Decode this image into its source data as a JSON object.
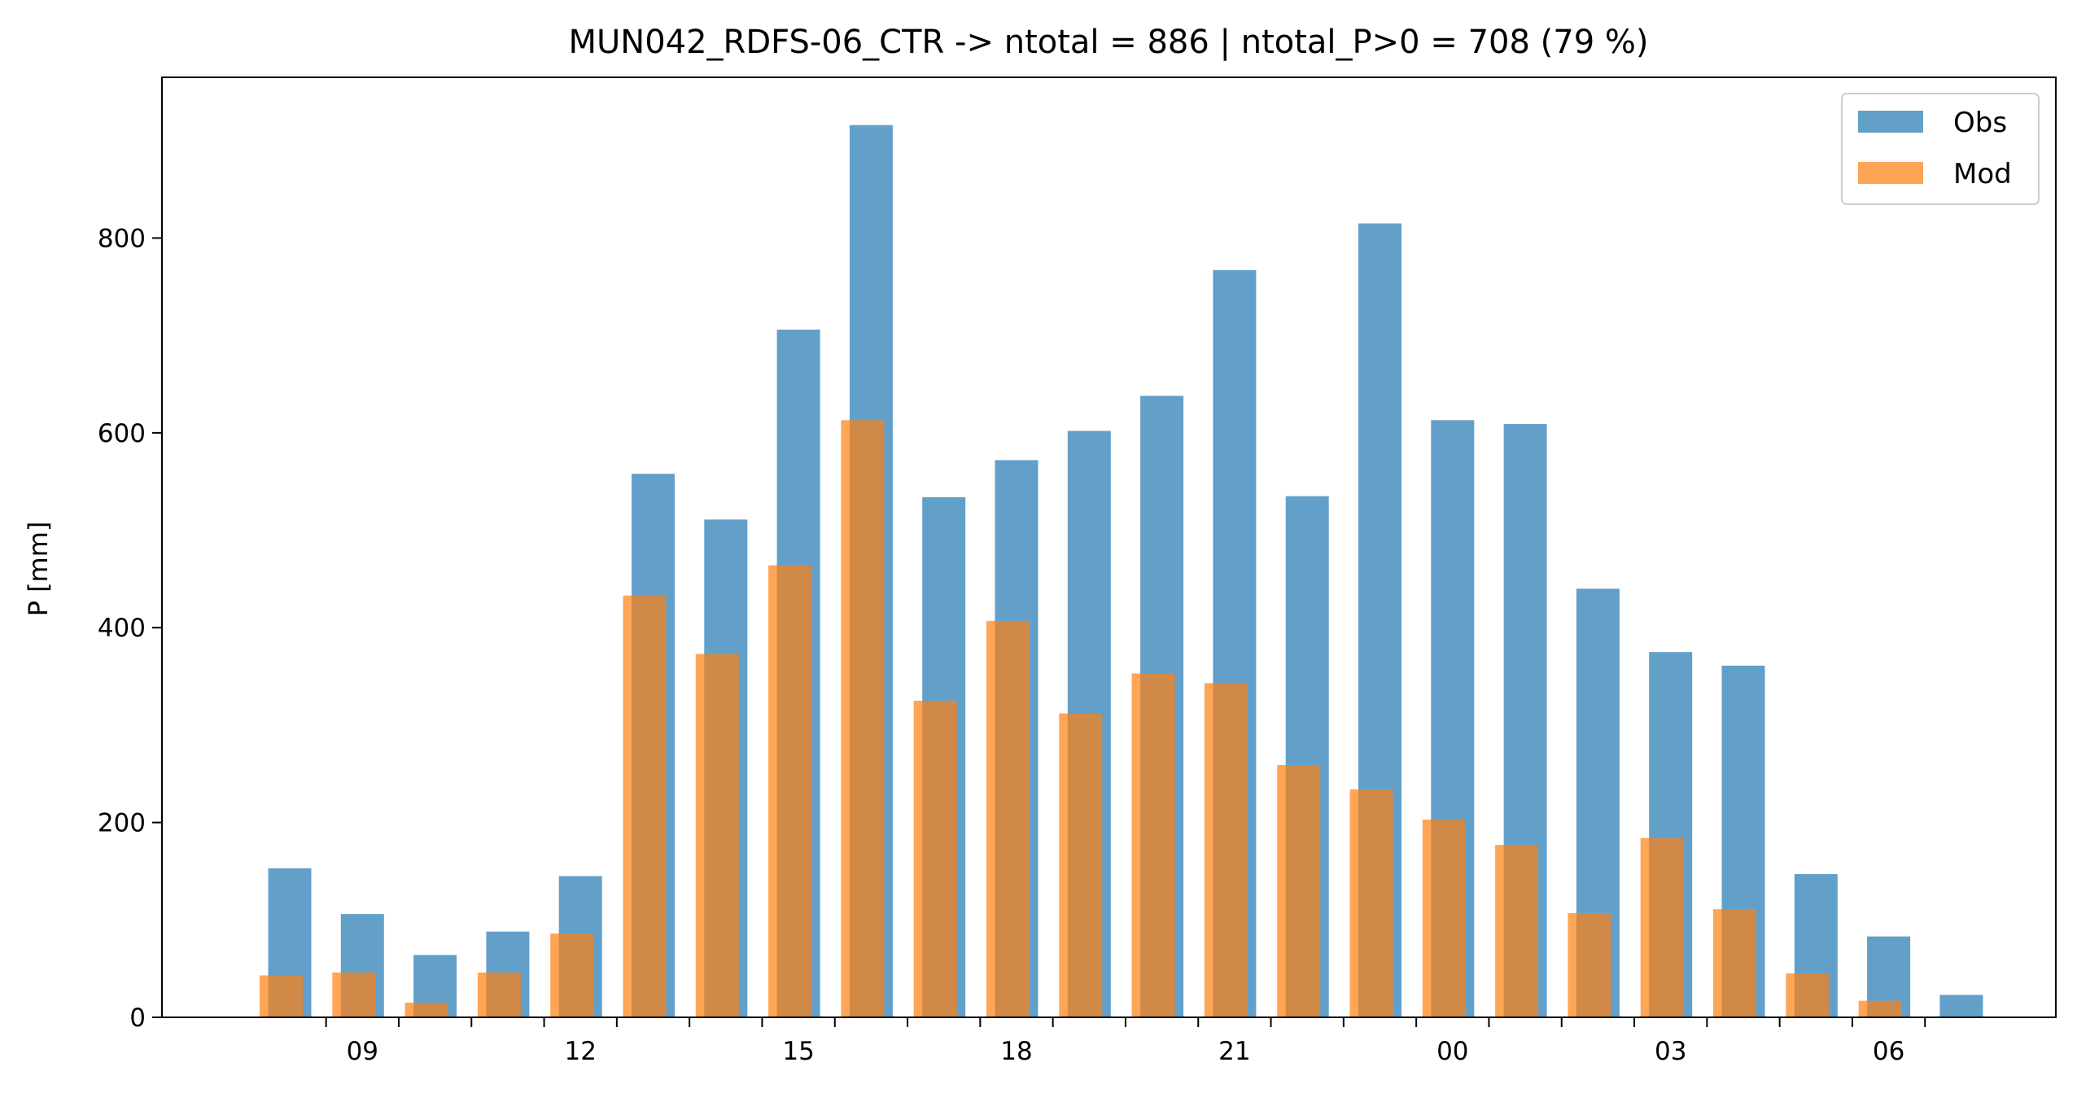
{
  "chart_data": {
    "type": "bar",
    "title": "MUN042_RDFS-06_CTR -> ntotal = 886 | ntotal_P>0 = 708 (79 %)",
    "xlabel": "",
    "ylabel": "P [mm]",
    "ylim": [
      0,
      965
    ],
    "yticks": [
      0,
      200,
      400,
      600,
      800
    ],
    "xtick_labels": [
      "09",
      "12",
      "15",
      "18",
      "21",
      "00",
      "03",
      "06"
    ],
    "xtick_positions": [
      1,
      4,
      7,
      10,
      13,
      16,
      19,
      22
    ],
    "x": [
      0,
      1,
      2,
      3,
      4,
      5,
      6,
      7,
      8,
      9,
      10,
      11,
      12,
      13,
      14,
      15,
      16,
      17,
      18,
      19,
      20,
      21,
      22,
      23
    ],
    "series": [
      {
        "name": "Obs",
        "color": "#1f77b4",
        "opacity": 0.7,
        "values": [
          153,
          106,
          64,
          88,
          145,
          558,
          511,
          706,
          916,
          534,
          572,
          602,
          638,
          767,
          535,
          815,
          613,
          609,
          440,
          375,
          361,
          147,
          83,
          23
        ]
      },
      {
        "name": "Mod",
        "color": "#ff7f0e",
        "opacity": 0.7,
        "values": [
          43,
          46,
          15,
          46,
          86,
          433,
          373,
          464,
          613,
          325,
          407,
          312,
          353,
          343,
          259,
          234,
          203,
          177,
          107,
          184,
          111,
          45,
          17,
          0
        ]
      }
    ],
    "legend": "top-right",
    "grid": false
  }
}
